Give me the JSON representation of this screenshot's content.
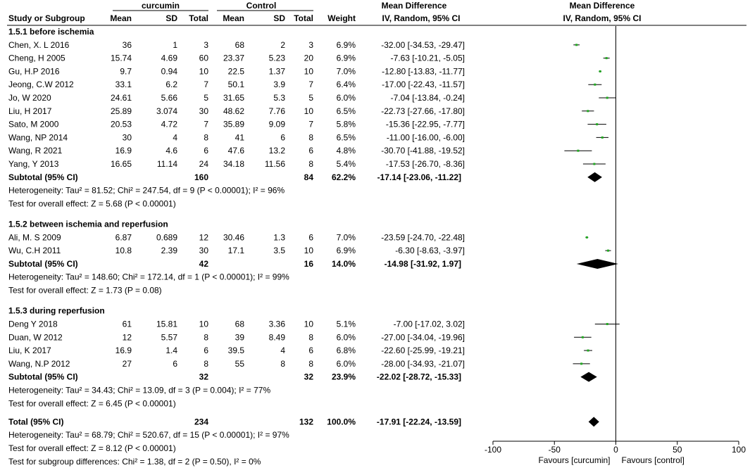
{
  "headers": {
    "group_a": "curcumin",
    "group_b": "Control",
    "study": "Study or Subgroup",
    "mean": "Mean",
    "sd": "SD",
    "total": "Total",
    "weight": "Weight",
    "md_title": "Mean Difference",
    "md_method": "IV, Random, 95% CI",
    "plot_title": "Mean Difference",
    "plot_method": "IV, Random, 95% CI"
  },
  "colors": {
    "study_marker": "#22aa22",
    "diamond": "#000000",
    "line": "#000000"
  },
  "chart_data": {
    "type": "forest",
    "xlim": [
      -100,
      100
    ],
    "x_ticks": [
      "-100",
      "-50",
      "0",
      "50",
      "100"
    ],
    "x_tick_values": [
      -100,
      -50,
      0,
      50,
      100
    ],
    "favours_left": "Favours [curcumin]",
    "favours_right": "Favours [control]",
    "groups": [
      {
        "title": "1.5.1 before ischemia",
        "studies": [
          {
            "name": "Chen, X. L 2016",
            "m1": "36",
            "sd1": "1",
            "n1": "3",
            "m2": "68",
            "sd2": "2",
            "n2": "3",
            "weight": "6.9%",
            "ci_text": "-32.00 [-34.53, -29.47]",
            "md": -32.0,
            "lo": -34.53,
            "hi": -29.47
          },
          {
            "name": "Cheng, H 2005",
            "m1": "15.74",
            "sd1": "4.69",
            "n1": "60",
            "m2": "23.37",
            "sd2": "5.23",
            "n2": "20",
            "weight": "6.9%",
            "ci_text": "-7.63 [-10.21, -5.05]",
            "md": -7.63,
            "lo": -10.21,
            "hi": -5.05
          },
          {
            "name": "Gu, H.P 2016",
            "m1": "9.7",
            "sd1": "0.94",
            "n1": "10",
            "m2": "22.5",
            "sd2": "1.37",
            "n2": "10",
            "weight": "7.0%",
            "ci_text": "-12.80 [-13.83, -11.77]",
            "md": -12.8,
            "lo": -13.83,
            "hi": -11.77
          },
          {
            "name": "Jeong, C.W 2012",
            "m1": "33.1",
            "sd1": "6.2",
            "n1": "7",
            "m2": "50.1",
            "sd2": "3.9",
            "n2": "7",
            "weight": "6.4%",
            "ci_text": "-17.00 [-22.43, -11.57]",
            "md": -17.0,
            "lo": -22.43,
            "hi": -11.57
          },
          {
            "name": "Jo, W 2020",
            "m1": "24.61",
            "sd1": "5.66",
            "n1": "5",
            "m2": "31.65",
            "sd2": "5.3",
            "n2": "5",
            "weight": "6.0%",
            "ci_text": "-7.04 [-13.84, -0.24]",
            "md": -7.04,
            "lo": -13.84,
            "hi": -0.24
          },
          {
            "name": "Liu, H 2017",
            "m1": "25.89",
            "sd1": "3.074",
            "n1": "30",
            "m2": "48.62",
            "sd2": "7.76",
            "n2": "10",
            "weight": "6.5%",
            "ci_text": "-22.73 [-27.66, -17.80]",
            "md": -22.73,
            "lo": -27.66,
            "hi": -17.8
          },
          {
            "name": "Sato, M 2000",
            "m1": "20.53",
            "sd1": "4.72",
            "n1": "7",
            "m2": "35.89",
            "sd2": "9.09",
            "n2": "7",
            "weight": "5.8%",
            "ci_text": "-15.36 [-22.95, -7.77]",
            "md": -15.36,
            "lo": -22.95,
            "hi": -7.77
          },
          {
            "name": "Wang, NP 2014",
            "m1": "30",
            "sd1": "4",
            "n1": "8",
            "m2": "41",
            "sd2": "6",
            "n2": "8",
            "weight": "6.5%",
            "ci_text": "-11.00 [-16.00, -6.00]",
            "md": -11.0,
            "lo": -16.0,
            "hi": -6.0
          },
          {
            "name": "Wang, R 2021",
            "m1": "16.9",
            "sd1": "4.6",
            "n1": "6",
            "m2": "47.6",
            "sd2": "13.2",
            "n2": "6",
            "weight": "4.8%",
            "ci_text": "-30.70 [-41.88, -19.52]",
            "md": -30.7,
            "lo": -41.88,
            "hi": -19.52
          },
          {
            "name": "Yang, Y 2013",
            "m1": "16.65",
            "sd1": "11.14",
            "n1": "24",
            "m2": "34.18",
            "sd2": "11.56",
            "n2": "8",
            "weight": "5.4%",
            "ci_text": "-17.53 [-26.70, -8.36]",
            "md": -17.53,
            "lo": -26.7,
            "hi": -8.36
          }
        ],
        "subtotal": {
          "label": "Subtotal (95% CI)",
          "n1": "160",
          "n2": "84",
          "weight": "62.2%",
          "ci_text": "-17.14 [-23.06, -11.22]",
          "md": -17.14,
          "lo": -23.06,
          "hi": -11.22
        },
        "heterogeneity": "Heterogeneity: Tau² = 81.52; Chi² = 247.54, df = 9 (P < 0.00001); I² = 96%",
        "overall_effect": "Test for overall effect: Z = 5.68 (P < 0.00001)"
      },
      {
        "title": "1.5.2 between ischemia and reperfusion",
        "studies": [
          {
            "name": "Ali, M. S 2009",
            "m1": "6.87",
            "sd1": "0.689",
            "n1": "12",
            "m2": "30.46",
            "sd2": "1.3",
            "n2": "6",
            "weight": "7.0%",
            "ci_text": "-23.59 [-24.70, -22.48]",
            "md": -23.59,
            "lo": -24.7,
            "hi": -22.48
          },
          {
            "name": "Wu, C.H 2011",
            "m1": "10.8",
            "sd1": "2.39",
            "n1": "30",
            "m2": "17.1",
            "sd2": "3.5",
            "n2": "10",
            "weight": "6.9%",
            "ci_text": "-6.30 [-8.63, -3.97]",
            "md": -6.3,
            "lo": -8.63,
            "hi": -3.97
          }
        ],
        "subtotal": {
          "label": "Subtotal (95% CI)",
          "n1": "42",
          "n2": "16",
          "weight": "14.0%",
          "ci_text": "-14.98 [-31.92, 1.97]",
          "md": -14.98,
          "lo": -31.92,
          "hi": 1.97
        },
        "heterogeneity": "Heterogeneity: Tau² = 148.60; Chi² = 172.14, df = 1 (P < 0.00001); I² = 99%",
        "overall_effect": "Test for overall effect: Z = 1.73 (P = 0.08)"
      },
      {
        "title": "1.5.3 during reperfusion",
        "studies": [
          {
            "name": "Deng Y 2018",
            "m1": "61",
            "sd1": "15.81",
            "n1": "10",
            "m2": "68",
            "sd2": "3.36",
            "n2": "10",
            "weight": "5.1%",
            "ci_text": "-7.00 [-17.02, 3.02]",
            "md": -7.0,
            "lo": -17.02,
            "hi": 3.02
          },
          {
            "name": "Duan, W 2012",
            "m1": "12",
            "sd1": "5.57",
            "n1": "8",
            "m2": "39",
            "sd2": "8.49",
            "n2": "8",
            "weight": "6.0%",
            "ci_text": "-27.00 [-34.04, -19.96]",
            "md": -27.0,
            "lo": -34.04,
            "hi": -19.96
          },
          {
            "name": "Liu, K 2017",
            "m1": "16.9",
            "sd1": "1.4",
            "n1": "6",
            "m2": "39.5",
            "sd2": "4",
            "n2": "6",
            "weight": "6.8%",
            "ci_text": "-22.60 [-25.99, -19.21]",
            "md": -22.6,
            "lo": -25.99,
            "hi": -19.21
          },
          {
            "name": "Wang, N.P 2012",
            "m1": "27",
            "sd1": "6",
            "n1": "8",
            "m2": "55",
            "sd2": "8",
            "n2": "8",
            "weight": "6.0%",
            "ci_text": "-28.00 [-34.93, -21.07]",
            "md": -28.0,
            "lo": -34.93,
            "hi": -21.07
          }
        ],
        "subtotal": {
          "label": "Subtotal (95% CI)",
          "n1": "32",
          "n2": "32",
          "weight": "23.9%",
          "ci_text": "-22.02 [-28.72, -15.33]",
          "md": -22.02,
          "lo": -28.72,
          "hi": -15.33
        },
        "heterogeneity": "Heterogeneity: Tau² = 34.43; Chi² = 13.09, df = 3 (P = 0.004); I² = 77%",
        "overall_effect": "Test for overall effect: Z = 6.45 (P < 0.00001)"
      }
    ],
    "total": {
      "label": "Total (95% CI)",
      "n1": "234",
      "n2": "132",
      "weight": "100.0%",
      "ci_text": "-17.91 [-22.24, -13.59]",
      "md": -17.91,
      "lo": -22.24,
      "hi": -13.59
    },
    "total_heterogeneity": "Heterogeneity: Tau² = 68.79; Chi² = 520.67, df = 15 (P < 0.00001); I² = 97%",
    "total_overall_effect": "Test for overall effect: Z = 8.12 (P < 0.00001)",
    "subgroup_differences": "Test for subgroup differences: Chi² = 1.38, df = 2 (P = 0.50), I² = 0%"
  }
}
